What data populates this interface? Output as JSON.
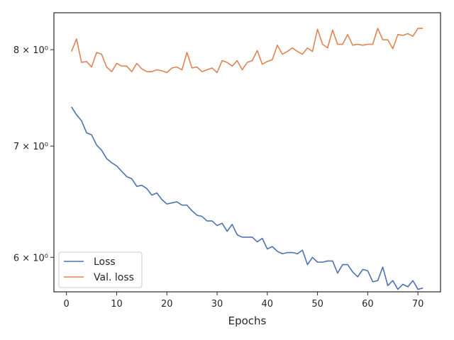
{
  "chart_data": {
    "type": "line",
    "title": "",
    "xlabel": "Epochs",
    "ylabel": "",
    "yscale": "log",
    "xlim": [
      -2.5,
      74.5
    ],
    "ylim": [
      5.72,
      8.42
    ],
    "xticks": [
      0,
      10,
      20,
      30,
      40,
      50,
      60,
      70
    ],
    "xtick_labels": [
      "0",
      "10",
      "20",
      "30",
      "40",
      "50",
      "60",
      "70"
    ],
    "yticks": [
      6,
      7,
      8
    ],
    "ytick_labels": [
      "6 × 10⁰",
      "7 × 10⁰",
      "8 × 10⁰"
    ],
    "grid": false,
    "legend": {
      "position": "lower-left",
      "entries": [
        "Loss",
        "Val. loss"
      ]
    },
    "x": [
      1,
      2,
      3,
      4,
      5,
      6,
      7,
      8,
      9,
      10,
      11,
      12,
      13,
      14,
      15,
      16,
      17,
      18,
      19,
      20,
      21,
      22,
      23,
      24,
      25,
      26,
      27,
      28,
      29,
      30,
      31,
      32,
      33,
      34,
      35,
      36,
      37,
      38,
      39,
      40,
      41,
      42,
      43,
      44,
      45,
      46,
      47,
      48,
      49,
      50,
      51,
      52,
      53,
      54,
      55,
      56,
      57,
      58,
      59,
      60,
      61,
      62,
      63,
      64,
      65,
      66,
      67,
      68,
      69,
      70,
      71
    ],
    "series": [
      {
        "name": "Loss",
        "color": "#4c72b0",
        "values": [
          7.39,
          7.31,
          7.25,
          7.13,
          7.11,
          7.01,
          6.96,
          6.88,
          6.84,
          6.81,
          6.76,
          6.71,
          6.69,
          6.62,
          6.63,
          6.6,
          6.54,
          6.56,
          6.5,
          6.46,
          6.47,
          6.48,
          6.45,
          6.45,
          6.4,
          6.36,
          6.35,
          6.31,
          6.31,
          6.27,
          6.29,
          6.22,
          6.28,
          6.19,
          6.17,
          6.17,
          6.17,
          6.13,
          6.16,
          6.07,
          6.09,
          6.05,
          6.03,
          6.04,
          6.04,
          6.03,
          6.06,
          5.94,
          6.0,
          5.96,
          5.96,
          5.97,
          5.97,
          5.87,
          5.94,
          5.94,
          5.88,
          5.84,
          5.9,
          5.89,
          5.8,
          5.81,
          5.92,
          5.77,
          5.81,
          5.74,
          5.78,
          5.76,
          5.81,
          5.74,
          5.75
        ]
      },
      {
        "name": "Val. loss",
        "color": "#dd8452",
        "values": [
          7.98,
          8.12,
          7.86,
          7.87,
          7.81,
          7.97,
          7.95,
          7.81,
          7.76,
          7.85,
          7.82,
          7.82,
          7.76,
          7.85,
          7.79,
          7.76,
          7.76,
          7.78,
          7.77,
          7.75,
          7.8,
          7.81,
          7.78,
          7.97,
          7.8,
          7.81,
          7.76,
          7.78,
          7.8,
          7.75,
          7.88,
          7.86,
          7.82,
          7.88,
          7.78,
          7.86,
          7.88,
          7.99,
          7.84,
          7.87,
          7.89,
          8.05,
          7.95,
          7.98,
          8.02,
          7.98,
          7.95,
          8.02,
          7.98,
          8.23,
          8.06,
          8.02,
          8.22,
          8.06,
          8.06,
          8.17,
          8.05,
          8.06,
          8.05,
          8.06,
          8.06,
          8.24,
          8.11,
          8.11,
          8.01,
          8.17,
          8.16,
          8.18,
          8.15,
          8.24,
          8.24
        ]
      }
    ]
  }
}
